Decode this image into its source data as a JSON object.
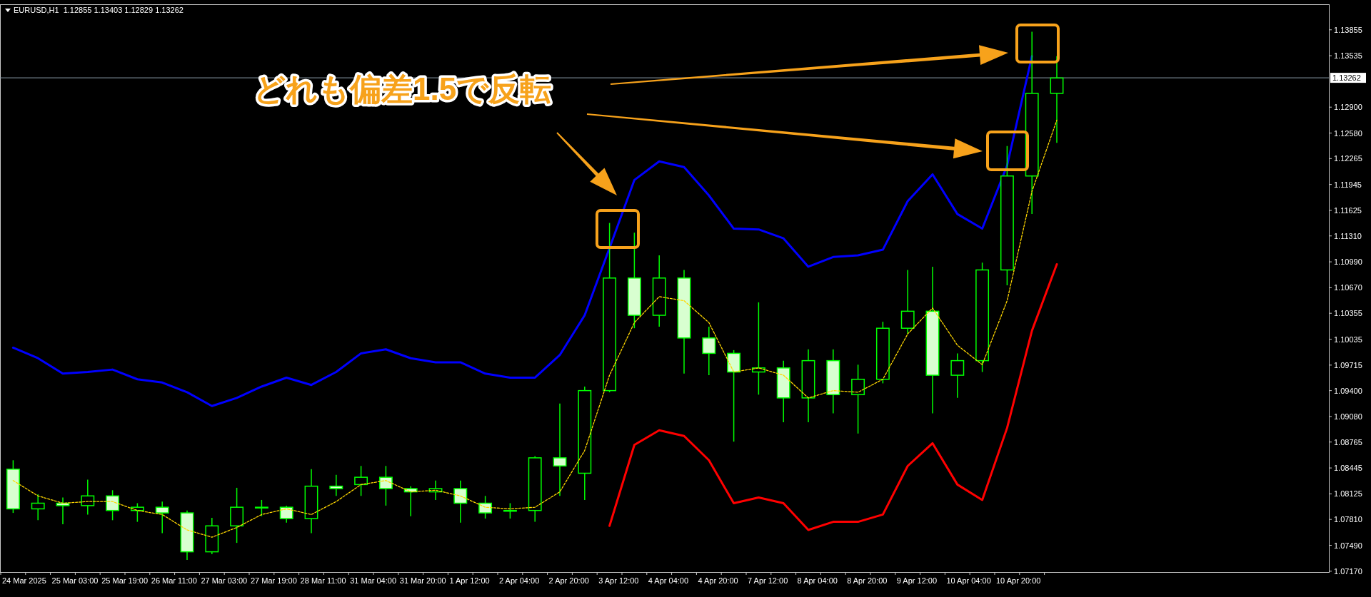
{
  "chart_data": {
    "type": "candlestick",
    "title": "EURUSD,H1  1.12855 1.13403 1.12829 1.13262",
    "annotations": [
      "どれも偏差1.5で反転"
    ],
    "categories": [
      "24 Mar 2025",
      null,
      "25 Mar 03:00",
      null,
      "25 Mar 19:00",
      null,
      "26 Mar 11:00",
      null,
      "27 Mar 03:00",
      null,
      "27 Mar 19:00",
      null,
      "28 Mar 11:00",
      null,
      "31 Mar 04:00",
      null,
      "31 Mar 20:00",
      null,
      "1 Apr 12:00",
      null,
      "2 Apr 04:00",
      null,
      "2 Apr 20:00",
      null,
      "3 Apr 12:00",
      null,
      "4 Apr 04:00",
      null,
      "4 Apr 20:00",
      null,
      "7 Apr 12:00",
      null,
      "8 Apr 04:00",
      null,
      "8 Apr 20:00",
      null,
      "9 Apr 12:00",
      null,
      "10 Apr 04:00",
      null,
      "10 Apr 20:00",
      null,
      null
    ],
    "color": "#00ff00",
    "ohlc": [
      [
        1.0843,
        1.0854,
        1.0789,
        1.0794
      ],
      [
        1.0794,
        1.0812,
        1.078,
        1.0801
      ],
      [
        1.0801,
        1.0808,
        1.0775,
        1.0798
      ],
      [
        1.0798,
        1.083,
        1.0787,
        1.081
      ],
      [
        1.081,
        1.0817,
        1.078,
        1.0792
      ],
      [
        1.0792,
        1.0801,
        1.0778,
        1.0796
      ],
      [
        1.0796,
        1.0803,
        1.0764,
        1.0789
      ],
      [
        1.0789,
        1.0792,
        1.0731,
        1.0741
      ],
      [
        1.0741,
        1.0783,
        1.0738,
        1.0773
      ],
      [
        1.0773,
        1.082,
        1.0752,
        1.0796
      ],
      [
        1.0796,
        1.0805,
        1.0785,
        1.0796
      ],
      [
        1.0796,
        1.0798,
        1.0777,
        1.0782
      ],
      [
        1.0782,
        1.0843,
        1.0764,
        1.0822
      ],
      [
        1.0822,
        1.0836,
        1.081,
        1.0819
      ],
      [
        1.0824,
        1.0847,
        1.081,
        1.0833
      ],
      [
        1.0833,
        1.0847,
        1.0798,
        1.0819
      ],
      [
        1.0819,
        1.0822,
        1.0785,
        1.0815
      ],
      [
        1.0815,
        1.0829,
        1.0805,
        1.0819
      ],
      [
        1.0819,
        1.0829,
        1.0777,
        1.0801
      ],
      [
        1.0801,
        1.081,
        1.0782,
        1.0789
      ],
      [
        1.0792,
        1.0801,
        1.0782,
        1.0792
      ],
      [
        1.0792,
        1.0859,
        1.0778,
        1.0857
      ],
      [
        1.0857,
        1.0924,
        1.081,
        1.0847
      ],
      [
        1.0838,
        1.0945,
        1.0805,
        1.094
      ],
      [
        1.094,
        1.1147,
        1.0938,
        1.1079
      ],
      [
        1.1079,
        1.1135,
        1.1017,
        1.1033
      ],
      [
        1.1033,
        1.1107,
        1.1019,
        1.1079
      ],
      [
        1.1079,
        1.1089,
        1.0961,
        1.1005
      ],
      [
        1.1005,
        1.1019,
        1.0959,
        1.0986
      ],
      [
        1.0986,
        1.099,
        1.0877,
        1.0963
      ],
      [
        1.0963,
        1.1049,
        1.0935,
        1.0968
      ],
      [
        1.0968,
        1.0977,
        1.0901,
        1.0931
      ],
      [
        1.0931,
        1.0991,
        1.0901,
        1.0977
      ],
      [
        1.0977,
        1.0991,
        1.0912,
        1.0935
      ],
      [
        1.0935,
        1.0972,
        1.0887,
        1.0954
      ],
      [
        1.0954,
        1.1025,
        1.0949,
        1.1017
      ],
      [
        1.1017,
        1.1089,
        1.101,
        1.1038
      ],
      [
        1.1038,
        1.1093,
        1.0912,
        1.0959
      ],
      [
        1.0959,
        1.0986,
        1.0931,
        1.0977
      ],
      [
        1.0977,
        1.1098,
        1.0963,
        1.1089
      ],
      [
        1.1089,
        1.1242,
        1.107,
        1.1205
      ],
      [
        1.1205,
        1.1383,
        1.1158,
        1.1307
      ],
      [
        1.1307,
        1.1353,
        1.1246,
        1.1326
      ]
    ],
    "series": [
      {
        "type": "line",
        "color": "#0000ff",
        "line_style": "solid",
        "values": [
          1.0993,
          1.098,
          1.0961,
          1.0963,
          1.0966,
          1.0954,
          1.095,
          1.0938,
          1.0921,
          1.0931,
          1.0945,
          1.0956,
          1.0947,
          1.0963,
          1.0986,
          1.0991,
          1.098,
          1.0975,
          1.0975,
          1.0961,
          1.0956,
          1.0956,
          1.0984,
          1.1033,
          1.1116,
          1.12,
          1.1223,
          1.1216,
          1.1181,
          1.114,
          1.1139,
          1.1128,
          1.1093,
          1.1105,
          1.1107,
          1.1114,
          1.1174,
          1.1207,
          1.1158,
          1.114,
          1.1218,
          1.1353,
          null
        ]
      },
      {
        "type": "line",
        "color": "#ffd700",
        "line_style": "dotted",
        "values": [
          1.0829,
          1.081,
          1.0801,
          1.0803,
          1.0803,
          1.0792,
          1.0787,
          1.0768,
          1.0759,
          1.0771,
          1.0787,
          1.0794,
          1.0787,
          1.0803,
          1.0824,
          1.0829,
          1.0815,
          1.0817,
          1.081,
          1.0796,
          1.0794,
          1.0796,
          1.0815,
          1.0866,
          1.0959,
          1.1024,
          1.1056,
          1.1051,
          1.1024,
          1.0963,
          1.0968,
          1.0959,
          1.0931,
          1.094,
          1.0938,
          1.0954,
          1.101,
          1.1042,
          1.0996,
          1.0972,
          1.1051,
          1.1186,
          1.1274
        ]
      },
      {
        "type": "line",
        "color": "#ff0000",
        "line_style": "solid",
        "values": [
          null,
          null,
          null,
          null,
          null,
          null,
          null,
          null,
          null,
          null,
          null,
          null,
          null,
          null,
          null,
          null,
          null,
          null,
          null,
          null,
          null,
          null,
          null,
          null,
          1.0773,
          1.0873,
          1.0891,
          1.0884,
          1.0854,
          1.0801,
          1.0808,
          1.0801,
          1.0768,
          1.0778,
          1.0778,
          1.0787,
          1.0847,
          1.0875,
          1.0824,
          1.0805,
          1.0894,
          1.1014,
          1.1096
        ]
      }
    ],
    "ylim": [
      1.0716,
      1.1417
    ],
    "yticks": [
      {
        "value": 1.13855,
        "label": "1.13855"
      },
      {
        "value": 1.13535,
        "label": "1.13535"
      },
      {
        "value": 1.129,
        "label": "1.12900"
      },
      {
        "value": 1.1258,
        "label": "1.12580"
      },
      {
        "value": 1.12265,
        "label": "1.12265"
      },
      {
        "value": 1.11945,
        "label": "1.11945"
      },
      {
        "value": 1.11625,
        "label": "1.11625"
      },
      {
        "value": 1.1131,
        "label": "1.11310"
      },
      {
        "value": 1.1099,
        "label": "1.10990"
      },
      {
        "value": 1.1067,
        "label": "1.10670"
      },
      {
        "value": 1.10355,
        "label": "1.10355"
      },
      {
        "value": 1.10035,
        "label": "1.10035"
      },
      {
        "value": 1.09715,
        "label": "1.09715"
      },
      {
        "value": 1.094,
        "label": "1.09400"
      },
      {
        "value": 1.0908,
        "label": "1.09080"
      },
      {
        "value": 1.08765,
        "label": "1.08765"
      },
      {
        "value": 1.08445,
        "label": "1.08445"
      },
      {
        "value": 1.08125,
        "label": "1.08125"
      },
      {
        "value": 1.0781,
        "label": "1.07810"
      },
      {
        "value": 1.0749,
        "label": "1.07490"
      },
      {
        "value": 1.0717,
        "label": "1.07170"
      }
    ],
    "ref_lines": [
      {
        "axis": "y",
        "value": 1.13262,
        "label": "1.13262",
        "color": "#8a9aa8"
      }
    ]
  }
}
